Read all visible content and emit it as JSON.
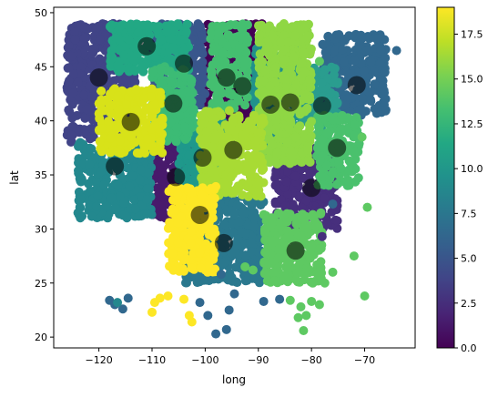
{
  "chart_data": {
    "type": "scatter",
    "title": "",
    "xlabel": "long",
    "ylabel": "lat",
    "xlim": [
      -128.5,
      -60.5
    ],
    "ylim": [
      19,
      50.5
    ],
    "x_ticks": [
      -120,
      -110,
      -100,
      -90,
      -80,
      -70
    ],
    "x_tick_labels": [
      "−120",
      "−110",
      "−100",
      "−90",
      "−80",
      "−70"
    ],
    "y_ticks": [
      20,
      25,
      30,
      35,
      40,
      45,
      50
    ],
    "y_tick_labels": [
      "20",
      "25",
      "30",
      "35",
      "40",
      "45",
      "50"
    ],
    "grid": false,
    "colormap": "viridis",
    "colorbar": {
      "range": [
        0,
        19
      ],
      "ticks": [
        0,
        2.5,
        5,
        7.5,
        10,
        12.5,
        15,
        17.5
      ],
      "tick_labels": [
        "0.0",
        "2.5",
        "5.0",
        "7.5",
        "10.0",
        "12.5",
        "15.0",
        "17.5"
      ]
    },
    "clusters": [
      {
        "id": 0,
        "label": 0,
        "color": "#440154",
        "bounds": [
          -100,
          -88,
          38,
          49
        ],
        "centroid": [
          -93,
          43.2
        ]
      },
      {
        "id": 1,
        "label": 1,
        "color": "#481a6c",
        "bounds": [
          -110,
          -99,
          31,
          38.5
        ],
        "centroid": [
          -105.5,
          34.8
        ]
      },
      {
        "id": 2,
        "label": 2,
        "color": "#472f7d",
        "bounds": [
          -87,
          -75,
          30,
          38
        ],
        "centroid": [
          -80,
          33.8
        ]
      },
      {
        "id": 3,
        "label": 3,
        "color": "#414487",
        "bounds": [
          -126,
          -113,
          38,
          49
        ],
        "centroid": [
          -120,
          44
        ]
      },
      {
        "id": 4,
        "label": 4,
        "color": "#39568c",
        "bounds": [
          -110,
          -100,
          41,
          49
        ],
        "centroid": [
          -104,
          45.3
        ]
      },
      {
        "id": 5,
        "label": 5,
        "color": "#31688e",
        "bounds": [
          -78,
          -66,
          40.5,
          48
        ],
        "centroid": [
          -71.5,
          43.3
        ]
      },
      {
        "id": 6,
        "label": 6,
        "color": "#2a788e",
        "bounds": [
          -104,
          -89,
          25,
          33
        ],
        "centroid": [
          -96.5,
          28.7
        ]
      },
      {
        "id": 7,
        "label": 7,
        "color": "#23888e",
        "bounds": [
          -124,
          -110,
          31,
          38
        ],
        "centroid": [
          -117,
          35.8
        ]
      },
      {
        "id": 8,
        "label": 8,
        "color": "#1f988b",
        "bounds": [
          -105,
          -96,
          33,
          40
        ],
        "centroid": [
          -100.5,
          36.6
        ]
      },
      {
        "id": 9,
        "label": 9,
        "color": "#22a884",
        "bounds": [
          -118,
          -103,
          44.5,
          49
        ],
        "centroid": [
          -111,
          46.9
        ]
      },
      {
        "id": 10,
        "label": 10,
        "color": "#2a9d8f",
        "bounds": [
          -82,
          -75,
          39.5,
          45
        ],
        "centroid": [
          -78,
          41.4
        ]
      },
      {
        "id": 11,
        "label": 11,
        "color": "#21918c",
        "bounds": [
          -91,
          -82,
          36.5,
          47
        ],
        "centroid": [
          -87.7,
          41.5
        ]
      },
      {
        "id": 12,
        "label": 12,
        "color": "#3cbb75",
        "bounds": [
          -110,
          -102,
          38,
          45
        ],
        "centroid": [
          -106,
          41.6
        ]
      },
      {
        "id": 13,
        "label": 13,
        "color": "#44bf70",
        "bounds": [
          -99,
          -92,
          41,
          49
        ],
        "centroid": [
          -96,
          44
        ]
      },
      {
        "id": 14,
        "label": 14,
        "color": "#4ac16d",
        "bounds": [
          -79,
          -71,
          34,
          40.5
        ],
        "centroid": [
          -75.2,
          37.5
        ]
      },
      {
        "id": 15,
        "label": 15,
        "color": "#5ec962",
        "bounds": [
          -89,
          -78,
          25,
          31.5
        ],
        "centroid": [
          -83,
          28
        ]
      },
      {
        "id": 16,
        "label": 16,
        "color": "#8fd744",
        "bounds": [
          -90,
          -80,
          36,
          49
        ],
        "centroid": [
          -84,
          41.7
        ]
      },
      {
        "id": 17,
        "label": 17,
        "color": "#a8db34",
        "bounds": [
          -101,
          -89,
          33,
          41
        ],
        "centroid": [
          -94.7,
          37.3
        ]
      },
      {
        "id": 18,
        "label": 18,
        "color": "#d8e219",
        "bounds": [
          -120,
          -108,
          37,
          43
        ],
        "centroid": [
          -114,
          39.9
        ]
      },
      {
        "id": 19,
        "label": 19,
        "color": "#fde725",
        "bounds": [
          -107,
          -98,
          26,
          34
        ],
        "centroid": [
          -101,
          31.3
        ]
      }
    ],
    "outliers": [
      {
        "x": -118,
        "y": 23.4,
        "color": "#31688e"
      },
      {
        "x": -117,
        "y": 23.0,
        "color": "#31688e"
      },
      {
        "x": -115.5,
        "y": 22.6,
        "color": "#31688e"
      },
      {
        "x": -114.5,
        "y": 23.6,
        "color": "#31688e"
      },
      {
        "x": -116.5,
        "y": 23.2,
        "color": "#23888e"
      },
      {
        "x": -109.5,
        "y": 23.2,
        "color": "#fde725"
      },
      {
        "x": -108.5,
        "y": 23.6,
        "color": "#fde725"
      },
      {
        "x": -107,
        "y": 23.8,
        "color": "#fde725"
      },
      {
        "x": -110,
        "y": 22.3,
        "color": "#fde725"
      },
      {
        "x": -104,
        "y": 23.5,
        "color": "#fde725"
      },
      {
        "x": -103,
        "y": 22.0,
        "color": "#fde725"
      },
      {
        "x": -102.5,
        "y": 21.4,
        "color": "#fde725"
      },
      {
        "x": -101,
        "y": 23.2,
        "color": "#31688e"
      },
      {
        "x": -99.5,
        "y": 22.0,
        "color": "#31688e"
      },
      {
        "x": -98,
        "y": 20.3,
        "color": "#31688e"
      },
      {
        "x": -96,
        "y": 20.7,
        "color": "#31688e"
      },
      {
        "x": -95.5,
        "y": 22.5,
        "color": "#31688e"
      },
      {
        "x": -94.5,
        "y": 24.0,
        "color": "#31688e"
      },
      {
        "x": -97,
        "y": 25.8,
        "color": "#31688e"
      },
      {
        "x": -89,
        "y": 23.3,
        "color": "#31688e"
      },
      {
        "x": -86,
        "y": 23.5,
        "color": "#31688e"
      },
      {
        "x": -87,
        "y": 26.0,
        "color": "#5ec962"
      },
      {
        "x": -84,
        "y": 23.4,
        "color": "#5ec962"
      },
      {
        "x": -82,
        "y": 22.8,
        "color": "#5ec962"
      },
      {
        "x": -81,
        "y": 22.0,
        "color": "#5ec962"
      },
      {
        "x": -80,
        "y": 23.3,
        "color": "#5ec962"
      },
      {
        "x": -78.5,
        "y": 23.0,
        "color": "#5ec962"
      },
      {
        "x": -77.5,
        "y": 25.0,
        "color": "#5ec962"
      },
      {
        "x": -76,
        "y": 26.0,
        "color": "#5ec962"
      },
      {
        "x": -82.5,
        "y": 21.8,
        "color": "#5ec962"
      },
      {
        "x": -81.5,
        "y": 20.6,
        "color": "#5ec962"
      },
      {
        "x": -72,
        "y": 27.5,
        "color": "#5ec962"
      },
      {
        "x": -70,
        "y": 23.8,
        "color": "#5ec962"
      },
      {
        "x": -69.5,
        "y": 32.0,
        "color": "#5ec962"
      },
      {
        "x": -70.5,
        "y": 38.5,
        "color": "#5ec962"
      },
      {
        "x": -76,
        "y": 32.3,
        "color": "#31688e"
      },
      {
        "x": -78,
        "y": 29.3,
        "color": "#472f7d"
      },
      {
        "x": -66,
        "y": 41.0,
        "color": "#31688e"
      },
      {
        "x": -64,
        "y": 46.5,
        "color": "#31688e"
      },
      {
        "x": -78.5,
        "y": 45.5,
        "color": "#5ec962"
      },
      {
        "x": -92.5,
        "y": 26.5,
        "color": "#5ec962"
      },
      {
        "x": -91,
        "y": 26.2,
        "color": "#5ec962"
      }
    ]
  }
}
